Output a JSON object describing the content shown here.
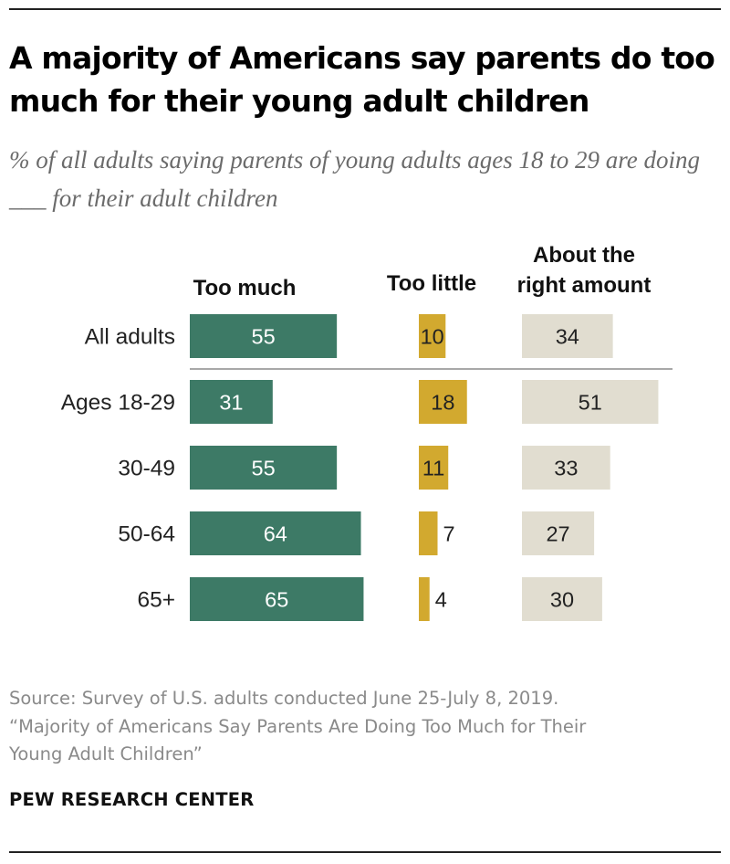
{
  "title": "A majority of Americans say parents do too much for their young adult children",
  "subtitle": "% of all adults saying parents of young adults ages 18 to 29 are doing ___ for their adult children",
  "chart_data": {
    "type": "bar",
    "orientation": "horizontal",
    "layout": "small-multiples",
    "categories": [
      "All adults",
      "Ages 18-29",
      "30-49",
      "50-64",
      "65+"
    ],
    "series": [
      {
        "name": "Too much",
        "color": "#3d7a66",
        "values": [
          55,
          31,
          55,
          64,
          65
        ]
      },
      {
        "name": "Too little",
        "color": "#d2a92f",
        "values": [
          10,
          18,
          11,
          7,
          4
        ]
      },
      {
        "name": "About the right amount",
        "color": "#e1ddd0",
        "values": [
          34,
          51,
          33,
          27,
          30
        ]
      }
    ],
    "header_labels": [
      [
        "Too much"
      ],
      [
        "Too little"
      ],
      [
        "About the",
        "right amount"
      ]
    ],
    "separator_after_category": "All adults"
  },
  "source": {
    "lines": [
      "Source: Survey of U.S. adults conducted June 25-July 8, 2019.",
      "“Majority of Americans Say Parents Are Doing Too Much for Their",
      "Young Adult Children”"
    ]
  },
  "brand": "PEW RESEARCH CENTER"
}
